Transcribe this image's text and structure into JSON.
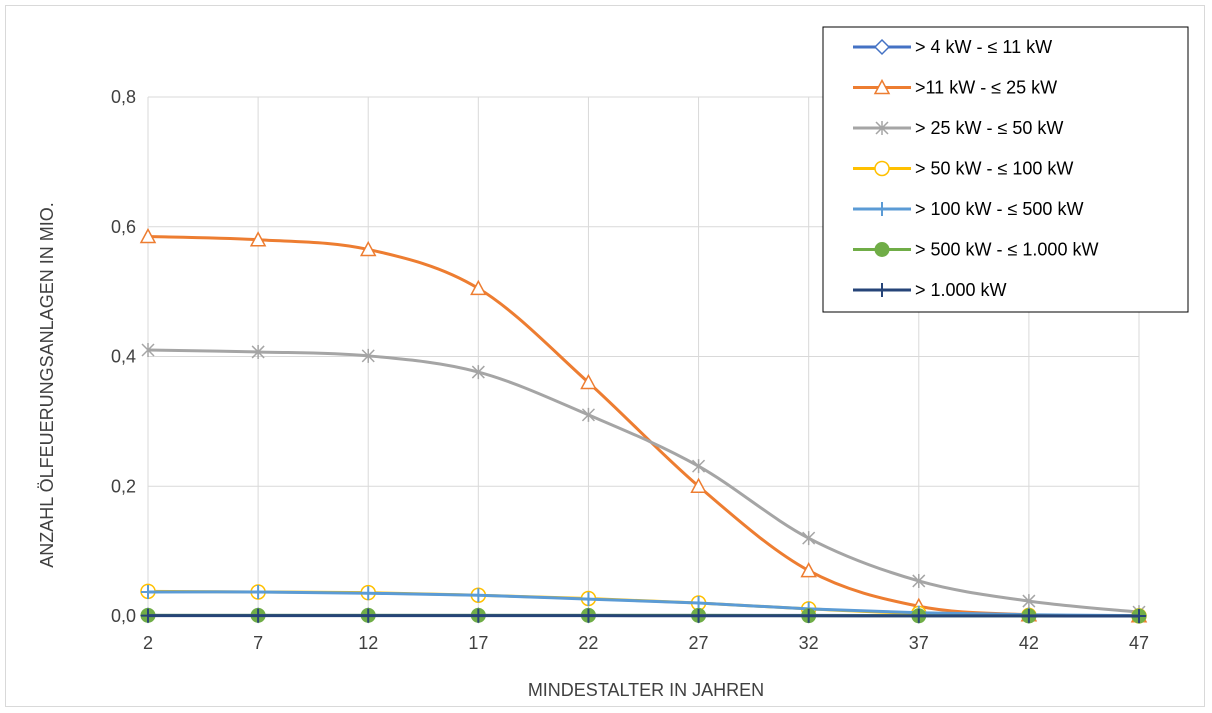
{
  "chart_data": {
    "type": "line",
    "xlabel": "MINDESTALTER IN JAHREN",
    "ylabel": "ANZAHL ÖLFEUERUNGSANLAGEN IN MIO.",
    "categories": [
      "2",
      "7",
      "12",
      "17",
      "22",
      "27",
      "32",
      "37",
      "42",
      "47"
    ],
    "y_ticks": [
      "0,0",
      "0,2",
      "0,4",
      "0,6",
      "0,8"
    ],
    "ylim": [
      0,
      0.8
    ],
    "grid": true,
    "legend_position": "top-right",
    "series": [
      {
        "name": "> 4 kW - ≤ 11 kW",
        "color": "#4472c4",
        "marker": "diamond",
        "values": [
          0.001,
          0.001,
          0.001,
          0.001,
          0.001,
          0.001,
          0.001,
          0.0005,
          0.0002,
          0.0001
        ]
      },
      {
        "name": ">11 kW - ≤ 25 kW",
        "color": "#ed7d31",
        "marker": "triangle",
        "values": [
          0.585,
          0.58,
          0.565,
          0.505,
          0.36,
          0.2,
          0.07,
          0.015,
          0.002,
          0.0003
        ]
      },
      {
        "name": "> 25 kW - ≤ 50 kW",
        "color": "#a5a5a5",
        "marker": "star",
        "values": [
          0.41,
          0.407,
          0.401,
          0.376,
          0.31,
          0.231,
          0.12,
          0.054,
          0.023,
          0.006
        ]
      },
      {
        "name": "> 50 kW - ≤ 100 kW",
        "color": "#ffc000",
        "marker": "circle",
        "values": [
          0.038,
          0.037,
          0.036,
          0.032,
          0.027,
          0.02,
          0.011,
          0.004,
          0.001,
          0.0002
        ]
      },
      {
        "name": "> 100 kW - ≤ 500 kW",
        "color": "#5b9bd5",
        "marker": "plus",
        "values": [
          0.037,
          0.037,
          0.035,
          0.032,
          0.026,
          0.02,
          0.011,
          0.005,
          0.002,
          0.0005
        ]
      },
      {
        "name": "> 500 kW - ≤ 1.000 kW",
        "color": "#70ad47",
        "marker": "dot",
        "values": [
          0.001,
          0.001,
          0.001,
          0.001,
          0.001,
          0.001,
          0.0005,
          0.0003,
          0.0001,
          0.0
        ]
      },
      {
        "name": "> 1.000 kW",
        "color": "#264478",
        "marker": "plus",
        "values": [
          0.0005,
          0.0005,
          0.0005,
          0.0005,
          0.0005,
          0.0004,
          0.0003,
          0.0002,
          0.0001,
          0.0
        ]
      }
    ]
  }
}
